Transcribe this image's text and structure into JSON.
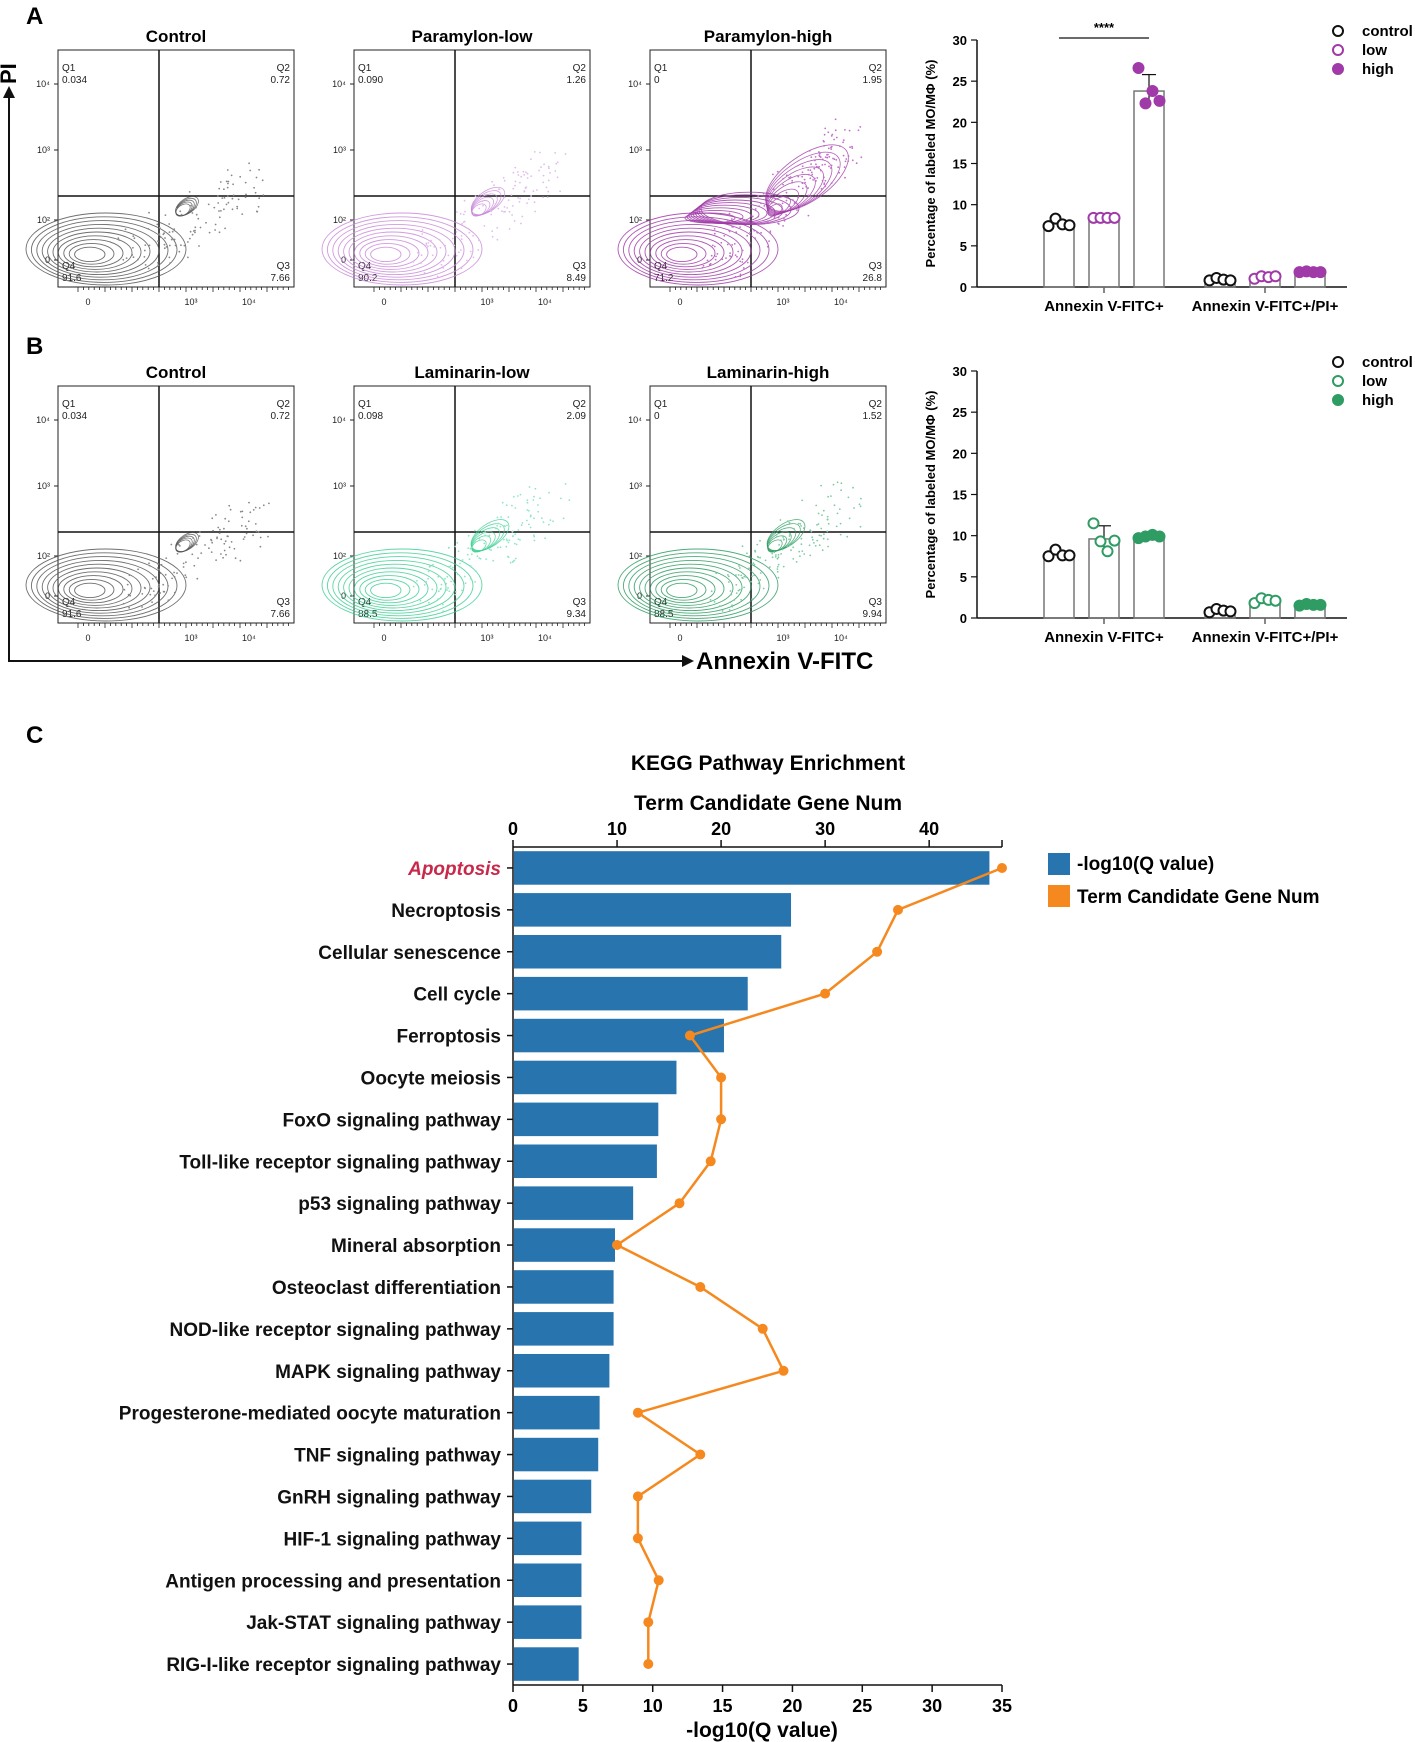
{
  "panels": {
    "a": "A",
    "b": "B",
    "c": "C"
  },
  "flow_axes": {
    "y_label": "PI",
    "x_label": "Annexin V-FITC"
  },
  "flow_ticks": {
    "y": [
      "10⁴",
      "10³",
      "10²",
      "0"
    ],
    "x": [
      "0",
      "10³",
      "10⁴"
    ]
  },
  "colors": {
    "control": "#555555",
    "paramylon": "#a03aa8",
    "paramylon_light": "#d6a8e6",
    "laminarin": "#2e9c63",
    "laminarin_light": "#6edcae",
    "bar_blue": "#2874ae",
    "line_orange": "#f5891f",
    "apoptosis_red": "#c8284a"
  },
  "flow_plots": {
    "row_a": [
      {
        "title": "Control",
        "q1_label": "Q1",
        "q1": "0.034",
        "q2_label": "Q2",
        "q2": "0.72",
        "q3_label": "Q3",
        "q3": "7.66",
        "q4_label": "Q4",
        "q4": "91.6",
        "color": "#555555",
        "light": "#888888",
        "spread": 0.25
      },
      {
        "title": "Paramylon-low",
        "q1_label": "Q1",
        "q1": "0.090",
        "q2_label": "Q2",
        "q2": "1.26",
        "q3_label": "Q3",
        "q3": "8.49",
        "q4_label": "Q4",
        "q4": "90.2",
        "color": "#c98ad9",
        "light": "#e0bdeb",
        "spread": 0.45
      },
      {
        "title": "Paramylon-high",
        "q1_label": "Q1",
        "q1": "0",
        "q2_label": "Q2",
        "q2": "1.95",
        "q3_label": "Q3",
        "q3": "26.8",
        "q4_label": "Q4",
        "q4": "71.2",
        "color": "#a03aa8",
        "light": "#c070c8",
        "spread": 1.0
      }
    ],
    "row_b": [
      {
        "title": "Control",
        "q1_label": "Q1",
        "q1": "0.034",
        "q2_label": "Q2",
        "q2": "0.72",
        "q3_label": "Q3",
        "q3": "7.66",
        "q4_label": "Q4",
        "q4": "91.6",
        "color": "#555555",
        "light": "#888888",
        "spread": 0.25
      },
      {
        "title": "Laminarin-low",
        "q1_label": "Q1",
        "q1": "0.098",
        "q2_label": "Q2",
        "q2": "2.09",
        "q3_label": "Q3",
        "q3": "9.34",
        "q4_label": "Q4",
        "q4": "88.5",
        "color": "#3fcf95",
        "light": "#8fe6c3",
        "spread": 0.55
      },
      {
        "title": "Laminarin-high",
        "q1_label": "Q1",
        "q1": "0",
        "q2_label": "Q2",
        "q2": "1.52",
        "q3_label": "Q3",
        "q3": "9.94",
        "q4_label": "Q4",
        "q4": "88.5",
        "color": "#2e9c63",
        "light": "#7ccc9f",
        "spread": 0.55
      }
    ]
  },
  "chart_data": [
    {
      "type": "bar",
      "id": "A-bar",
      "ylabel": "Percentage of labeled MO/MΦ (%)",
      "ylim": [
        0,
        30
      ],
      "yticks": [
        "0",
        "5",
        "10",
        "15",
        "20",
        "25",
        "30"
      ],
      "categories": [
        "Annexin V-FITC+",
        "Annexin V-FITC+/PI+"
      ],
      "series": [
        {
          "name": "control",
          "values": [
            7.7,
            0.9
          ],
          "sd": [
            0.4,
            0.2
          ],
          "points": [
            [
              7.4,
              8.3,
              7.6,
              7.5
            ],
            [
              0.8,
              1.1,
              0.9,
              0.8
            ]
          ],
          "color": "#111111",
          "filled": false
        },
        {
          "name": "low",
          "values": [
            8.4,
            1.2
          ],
          "sd": [
            0.1,
            0.2
          ],
          "points": [
            [
              8.4,
              8.4,
              8.4,
              8.4
            ],
            [
              1.0,
              1.3,
              1.2,
              1.3
            ]
          ],
          "color": "#a03aa8",
          "filled": false
        },
        {
          "name": "high",
          "values": [
            23.8,
            1.8
          ],
          "sd": [
            2.0,
            0.1
          ],
          "points": [
            [
              26.6,
              22.3,
              23.8,
              22.6
            ],
            [
              1.8,
              1.9,
              1.8,
              1.8
            ]
          ],
          "color": "#a03aa8",
          "filled": true
        }
      ],
      "significance": "****"
    },
    {
      "type": "bar",
      "id": "B-bar",
      "ylabel": "Percentage of labeled MO/MΦ (%)",
      "ylim": [
        0,
        30
      ],
      "yticks": [
        "0",
        "5",
        "10",
        "15",
        "20",
        "25",
        "30"
      ],
      "categories": [
        "Annexin V-FITC+",
        "Annexin V-FITC+/PI+"
      ],
      "series": [
        {
          "name": "control",
          "values": [
            7.7,
            0.9
          ],
          "sd": [
            0.4,
            0.2
          ],
          "points": [
            [
              7.5,
              8.3,
              7.6,
              7.6
            ],
            [
              0.7,
              1.1,
              0.9,
              0.8
            ]
          ],
          "color": "#111111",
          "filled": false
        },
        {
          "name": "low",
          "values": [
            9.6,
            2.1
          ],
          "sd": [
            1.6,
            0.3
          ],
          "points": [
            [
              11.5,
              9.3,
              8.1,
              9.4
            ],
            [
              1.8,
              2.4,
              2.2,
              2.1
            ]
          ],
          "color": "#2e9c63",
          "filled": false
        },
        {
          "name": "high",
          "values": [
            9.9,
            1.6
          ],
          "sd": [
            0.2,
            0.1
          ],
          "points": [
            [
              9.7,
              9.9,
              10.1,
              9.9
            ],
            [
              1.5,
              1.7,
              1.6,
              1.6
            ]
          ],
          "color": "#2e9c63",
          "filled": true
        }
      ]
    },
    {
      "type": "bar",
      "id": "C-kegg",
      "title": "KEGG Pathway Enrichment",
      "top_axis_label": "Term Candidate Gene Num",
      "bottom_axis_label": "-log10(Q value)",
      "bottom_xlim": [
        0,
        35
      ],
      "bottom_ticks": [
        "0",
        "5",
        "10",
        "15",
        "20",
        "25",
        "30",
        "35"
      ],
      "top_xlim": [
        0,
        47
      ],
      "top_ticks": [
        "0",
        "10",
        "20",
        "30",
        "40"
      ],
      "legend": [
        "-log10(Q value)",
        "Term Candidate Gene Num"
      ],
      "categories": [
        "Apoptosis",
        "Necroptosis",
        "Cellular senescence",
        "Cell cycle",
        "Ferroptosis",
        "Oocyte meiosis",
        "FoxO signaling pathway",
        "Toll-like receptor signaling pathway",
        "p53 signaling pathway",
        "Mineral absorption",
        "Osteoclast differentiation",
        "NOD-like receptor signaling pathway",
        "MAPK signaling pathway",
        "Progesterone-mediated oocyte maturation",
        "TNF signaling pathway",
        "GnRH signaling pathway",
        "HIF-1 signaling pathway",
        "Antigen processing and presentation",
        "Jak-STAT signaling pathway",
        "RIG-I-like receptor signaling pathway"
      ],
      "neglog10_q": [
        34.1,
        19.9,
        19.2,
        16.8,
        15.1,
        11.7,
        10.4,
        10.3,
        8.6,
        7.3,
        7.2,
        7.2,
        6.9,
        6.2,
        6.1,
        5.6,
        4.9,
        4.9,
        4.9,
        4.7
      ],
      "gene_num": [
        47,
        37,
        35,
        30,
        17,
        20,
        20,
        19,
        16,
        10,
        18,
        24,
        26,
        12,
        18,
        12,
        12,
        14,
        13,
        13
      ],
      "highlight": "Apoptosis"
    }
  ]
}
